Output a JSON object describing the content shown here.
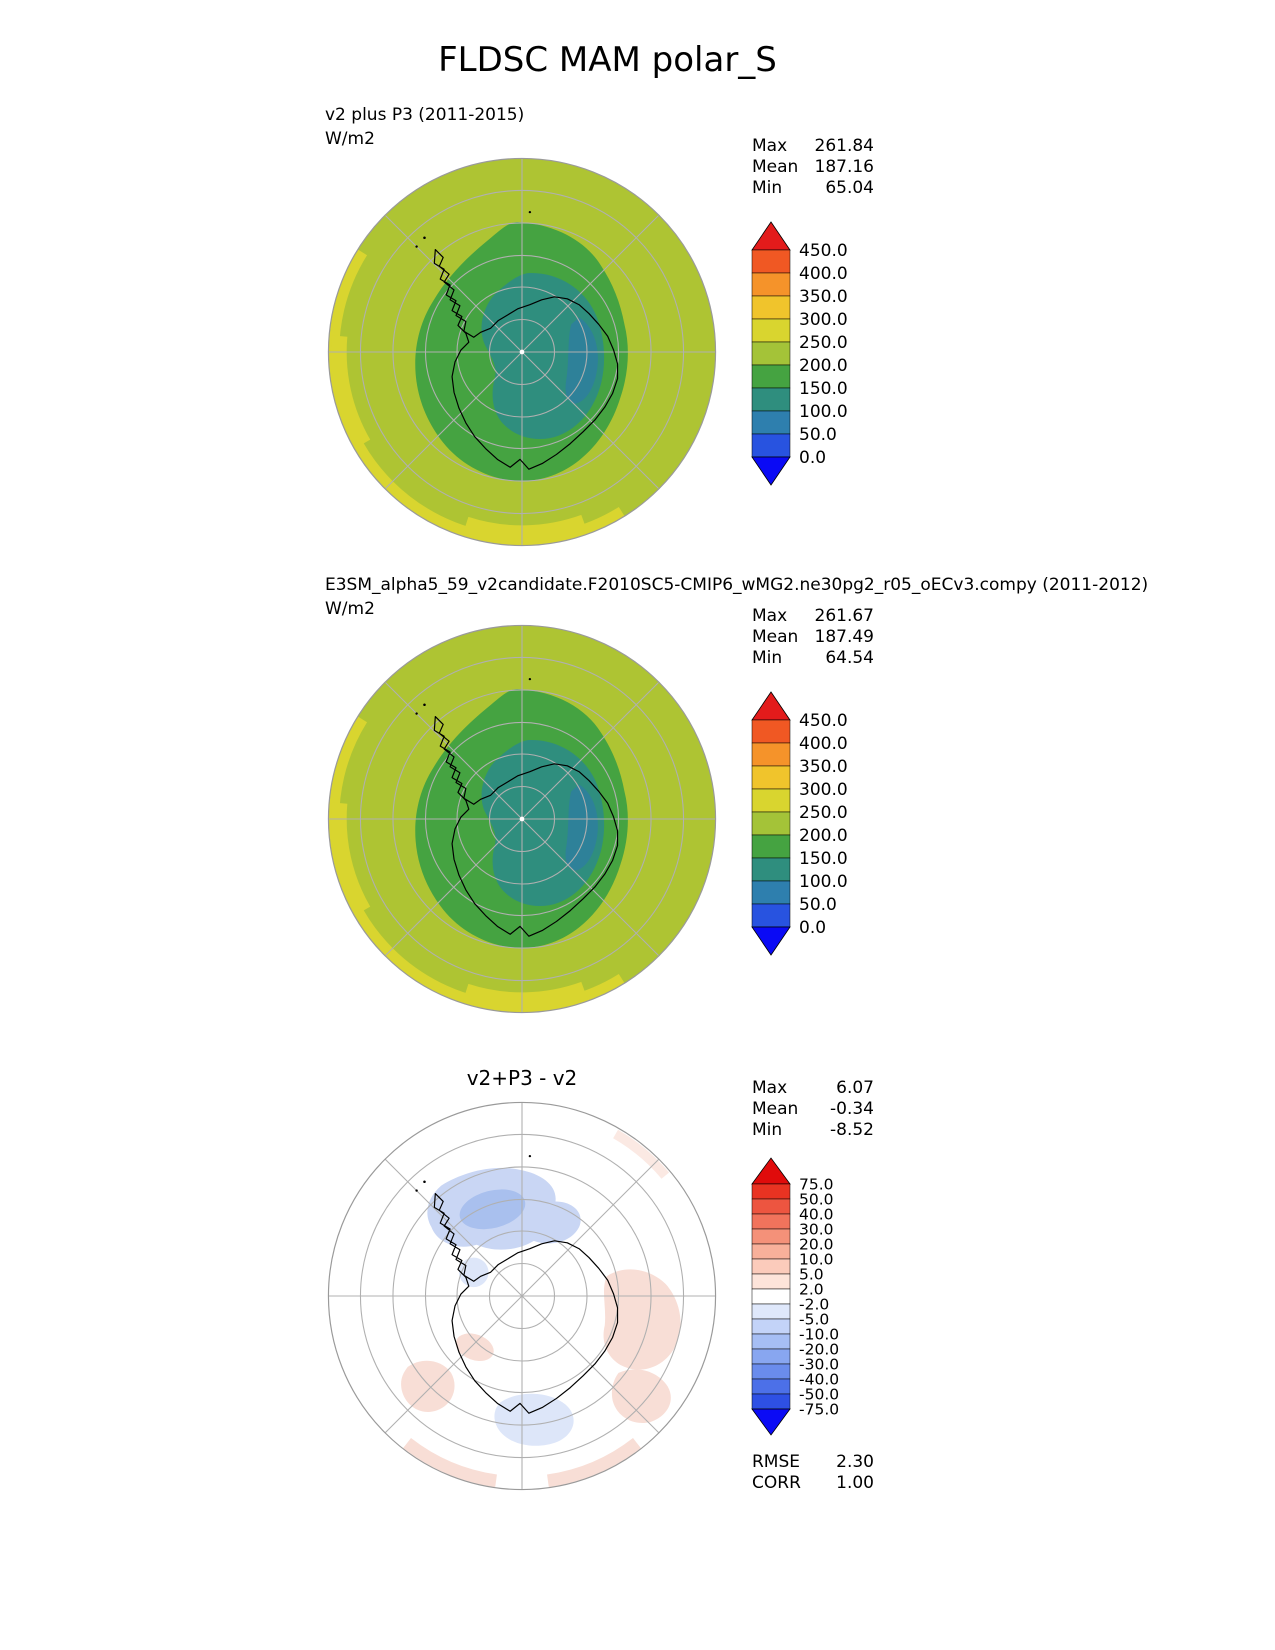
{
  "page_title": "FLDSC MAM polar_S",
  "variable": "FLDSC",
  "season": "MAM",
  "region": "polar_S",
  "chart_data": [
    {
      "type": "heatmap",
      "panel": "test-case",
      "projection": "south polar stereographic",
      "title": "v2 plus P3 (2011-2015)",
      "units": "W/m2",
      "stats": [
        {
          "label": "Max",
          "value": "261.84"
        },
        {
          "label": "Mean",
          "value": "187.16"
        },
        {
          "label": "Min",
          "value": "65.04"
        }
      ],
      "colorbar": {
        "extend": "both",
        "ticks": [
          "450.0",
          "400.0",
          "350.0",
          "300.0",
          "250.0",
          "200.0",
          "150.0",
          "100.0",
          "50.0",
          "0.0"
        ],
        "colors_top_to_bottom": [
          "#e31b1b",
          "#f05823",
          "#f5932a",
          "#f0c42c",
          "#d9d52f",
          "#a4c338",
          "#45a341",
          "#2f8e7e",
          "#2e7fae",
          "#2853e0",
          "#0a0af5"
        ]
      },
      "map_regions": {
        "ocean_ring": "200-250 W/m2 yellow-green",
        "outer_rim_patches": "250-300 W/m2 yellow",
        "coastal_band": "150-200 W/m2 green",
        "interior_antarctica": "100-150 W/m2 teal"
      }
    },
    {
      "type": "heatmap",
      "panel": "reference-case",
      "projection": "south polar stereographic",
      "title": "E3SM_alpha5_59_v2candidate.F2010SC5-CMIP6_wMG2.ne30pg2_r05_oECv3.compy (2011-2012)",
      "units": "W/m2",
      "stats": [
        {
          "label": "Max",
          "value": "261.67"
        },
        {
          "label": "Mean",
          "value": "187.49"
        },
        {
          "label": "Min",
          "value": "64.54"
        }
      ],
      "colorbar": {
        "extend": "both",
        "ticks": [
          "450.0",
          "400.0",
          "350.0",
          "300.0",
          "250.0",
          "200.0",
          "150.0",
          "100.0",
          "50.0",
          "0.0"
        ],
        "colors_top_to_bottom": [
          "#e31b1b",
          "#f05823",
          "#f5932a",
          "#f0c42c",
          "#d9d52f",
          "#a4c338",
          "#45a341",
          "#2f8e7e",
          "#2e7fae",
          "#2853e0",
          "#0a0af5"
        ]
      }
    },
    {
      "type": "heatmap",
      "panel": "difference",
      "projection": "south polar stereographic",
      "title": "v2+P3 - v2",
      "units": "W/m2",
      "stats": [
        {
          "label": "Max",
          "value": "6.07"
        },
        {
          "label": "Mean",
          "value": "-0.34"
        },
        {
          "label": "Min",
          "value": "-8.52"
        }
      ],
      "metrics": [
        {
          "label": "RMSE",
          "value": "2.30"
        },
        {
          "label": "CORR",
          "value": "1.00"
        }
      ],
      "colorbar": {
        "extend": "both",
        "ticks": [
          "75.0",
          "50.0",
          "40.0",
          "30.0",
          "20.0",
          "10.0",
          "5.0",
          "2.0",
          "-2.0",
          "-5.0",
          "-10.0",
          "-20.0",
          "-30.0",
          "-40.0",
          "-50.0",
          "-75.0"
        ],
        "colors_top_to_bottom": [
          "#e00b0b",
          "#e93322",
          "#ed5540",
          "#f1735c",
          "#f49179",
          "#f8b09a",
          "#fbcbbb",
          "#fde4da",
          "#ffffff",
          "#dfe8fb",
          "#c3d3f8",
          "#a6bef4",
          "#88a6f0",
          "#6a8cec",
          "#4c70e8",
          "#2e50e4",
          "#0b0bf5"
        ]
      },
      "map_regions": {
        "negative_patches": "light blue, -2 to -10, north of peninsula and bottom center",
        "positive_patches": "light red, 2 to 5, east side and lower-left rim",
        "background": "white, -2 to 2"
      }
    }
  ]
}
